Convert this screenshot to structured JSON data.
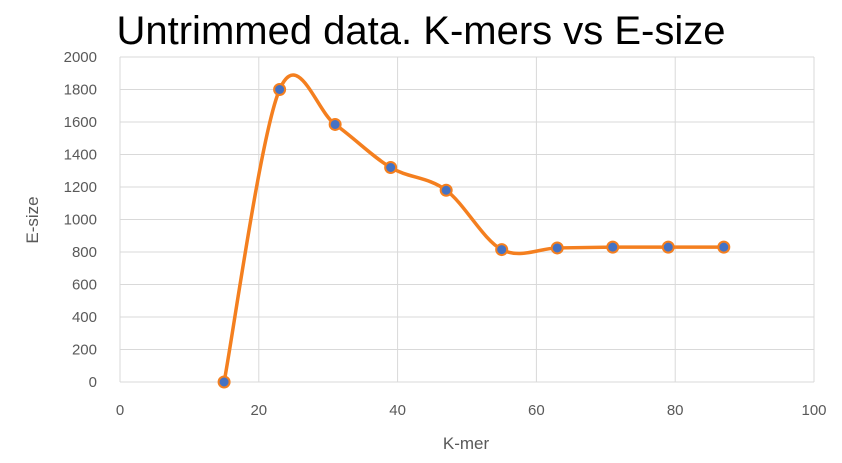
{
  "chart_data": {
    "type": "line",
    "title": "Untrimmed data. K-mers vs E-size",
    "xlabel": "K-mer",
    "ylabel": "E-size",
    "xlim": [
      0,
      100
    ],
    "ylim": [
      0,
      2000
    ],
    "x_ticks": [
      0,
      20,
      40,
      60,
      80,
      100
    ],
    "y_ticks": [
      0,
      200,
      400,
      600,
      800,
      1000,
      1200,
      1400,
      1600,
      1800,
      2000
    ],
    "grid": true,
    "smoothed": true,
    "series": [
      {
        "x": [
          15,
          23,
          31,
          39,
          47,
          55,
          63,
          71,
          79,
          87
        ],
        "values": [
          0,
          1800,
          1585,
          1320,
          1180,
          815,
          825,
          830,
          830,
          830
        ],
        "line_color": "#F47F1F",
        "marker_color": "#4472C4"
      }
    ]
  }
}
